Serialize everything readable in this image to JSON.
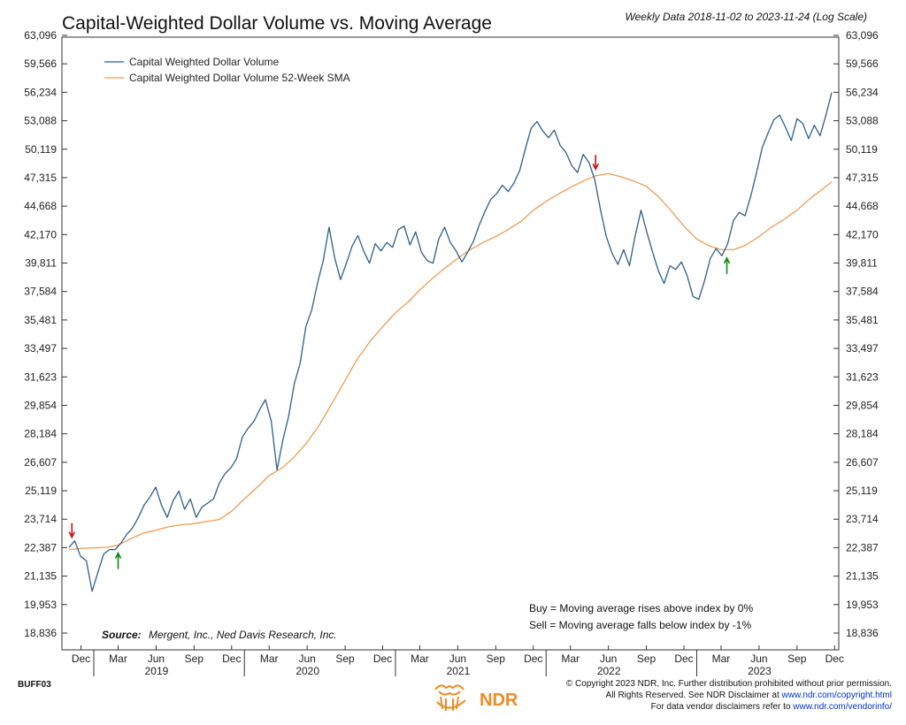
{
  "chart_data": {
    "type": "line",
    "title": "Capital-Weighted Dollar Volume vs. Moving Average",
    "subtitle": "Weekly Data 2018-11-02 to 2023-11-24 (Log Scale)",
    "y_scale": "log",
    "ylim": [
      18836,
      63096
    ],
    "y_ticks": [
      "63,096",
      "59,566",
      "56,234",
      "53,088",
      "50,119",
      "47,315",
      "44,668",
      "42,170",
      "39,811",
      "37,584",
      "35,481",
      "33,497",
      "31,623",
      "29,854",
      "28,184",
      "26,607",
      "25,119",
      "23,714",
      "22,387",
      "21,135",
      "19,953",
      "18,836"
    ],
    "y_tick_values": [
      63096,
      59566,
      56234,
      53088,
      50119,
      47315,
      44668,
      42170,
      39811,
      37584,
      35481,
      33497,
      31623,
      29854,
      28184,
      26607,
      25119,
      23714,
      22387,
      21135,
      19953,
      18836
    ],
    "x_range": [
      "2018-11-02",
      "2023-11-24"
    ],
    "month_ticks": [
      {
        "label": "Dec",
        "date": "2018-12-01"
      },
      {
        "label": "Mar",
        "date": "2019-03-01"
      },
      {
        "label": "Jun",
        "date": "2019-06-01"
      },
      {
        "label": "Sep",
        "date": "2019-09-01"
      },
      {
        "label": "Dec",
        "date": "2019-12-01"
      },
      {
        "label": "Mar",
        "date": "2020-03-01"
      },
      {
        "label": "Jun",
        "date": "2020-06-01"
      },
      {
        "label": "Sep",
        "date": "2020-09-01"
      },
      {
        "label": "Dec",
        "date": "2020-12-01"
      },
      {
        "label": "Mar",
        "date": "2021-03-01"
      },
      {
        "label": "Jun",
        "date": "2021-06-01"
      },
      {
        "label": "Sep",
        "date": "2021-09-01"
      },
      {
        "label": "Dec",
        "date": "2021-12-01"
      },
      {
        "label": "Mar",
        "date": "2022-03-01"
      },
      {
        "label": "Jun",
        "date": "2022-06-01"
      },
      {
        "label": "Sep",
        "date": "2022-09-01"
      },
      {
        "label": "Dec",
        "date": "2022-12-01"
      },
      {
        "label": "Mar",
        "date": "2023-03-01"
      },
      {
        "label": "Jun",
        "date": "2023-06-01"
      },
      {
        "label": "Sep",
        "date": "2023-09-01"
      },
      {
        "label": "Dec",
        "date": "2023-12-01"
      }
    ],
    "year_labels": [
      {
        "label": "2019",
        "date": "2019-06-15"
      },
      {
        "label": "2020",
        "date": "2020-06-15"
      },
      {
        "label": "2021",
        "date": "2021-06-15"
      },
      {
        "label": "2022",
        "date": "2022-06-15"
      },
      {
        "label": "2023",
        "date": "2023-06-15"
      }
    ],
    "series": [
      {
        "name": "Capital Weighted Dollar Volume",
        "color": "#2e5f8a",
        "points": [
          [
            "2018-11-02",
            22400
          ],
          [
            "2018-11-16",
            22700
          ],
          [
            "2018-11-30",
            22000
          ],
          [
            "2018-12-14",
            21800
          ],
          [
            "2018-12-28",
            20500
          ],
          [
            "2019-01-11",
            21300
          ],
          [
            "2019-01-25",
            22100
          ],
          [
            "2019-02-08",
            22300
          ],
          [
            "2019-02-22",
            22300
          ],
          [
            "2019-03-08",
            22600
          ],
          [
            "2019-03-22",
            23000
          ],
          [
            "2019-04-05",
            23300
          ],
          [
            "2019-04-19",
            23800
          ],
          [
            "2019-05-03",
            24400
          ],
          [
            "2019-05-17",
            24800
          ],
          [
            "2019-05-31",
            25300
          ],
          [
            "2019-06-14",
            24400
          ],
          [
            "2019-06-28",
            23800
          ],
          [
            "2019-07-12",
            24600
          ],
          [
            "2019-07-26",
            25100
          ],
          [
            "2019-08-09",
            24200
          ],
          [
            "2019-08-23",
            24700
          ],
          [
            "2019-09-06",
            23800
          ],
          [
            "2019-09-20",
            24300
          ],
          [
            "2019-10-04",
            24500
          ],
          [
            "2019-10-18",
            24700
          ],
          [
            "2019-11-01",
            25500
          ],
          [
            "2019-11-15",
            26000
          ],
          [
            "2019-11-29",
            26300
          ],
          [
            "2019-12-13",
            26800
          ],
          [
            "2019-12-27",
            28000
          ],
          [
            "2020-01-10",
            28500
          ],
          [
            "2020-01-24",
            28900
          ],
          [
            "2020-02-07",
            29600
          ],
          [
            "2020-02-21",
            30200
          ],
          [
            "2020-03-06",
            28900
          ],
          [
            "2020-03-20",
            26200
          ],
          [
            "2020-04-03",
            27800
          ],
          [
            "2020-04-17",
            29200
          ],
          [
            "2020-05-01",
            31200
          ],
          [
            "2020-05-15",
            32500
          ],
          [
            "2020-05-29",
            35000
          ],
          [
            "2020-06-12",
            36200
          ],
          [
            "2020-06-26",
            38200
          ],
          [
            "2020-07-10",
            40000
          ],
          [
            "2020-07-24",
            42800
          ],
          [
            "2020-08-07",
            40200
          ],
          [
            "2020-08-21",
            38500
          ],
          [
            "2020-09-04",
            39800
          ],
          [
            "2020-09-18",
            41200
          ],
          [
            "2020-10-02",
            42100
          ],
          [
            "2020-10-16",
            40800
          ],
          [
            "2020-10-30",
            39800
          ],
          [
            "2020-11-13",
            41400
          ],
          [
            "2020-11-27",
            40800
          ],
          [
            "2020-12-11",
            41500
          ],
          [
            "2020-12-25",
            41100
          ],
          [
            "2021-01-08",
            42600
          ],
          [
            "2021-01-22",
            42900
          ],
          [
            "2021-02-05",
            41300
          ],
          [
            "2021-02-19",
            42400
          ],
          [
            "2021-03-05",
            40700
          ],
          [
            "2021-03-19",
            40000
          ],
          [
            "2021-04-02",
            39800
          ],
          [
            "2021-04-16",
            41800
          ],
          [
            "2021-04-30",
            42800
          ],
          [
            "2021-05-14",
            41500
          ],
          [
            "2021-05-28",
            40800
          ],
          [
            "2021-06-11",
            39900
          ],
          [
            "2021-06-25",
            40700
          ],
          [
            "2021-07-09",
            41600
          ],
          [
            "2021-07-23",
            43000
          ],
          [
            "2021-08-06",
            44200
          ],
          [
            "2021-08-20",
            45300
          ],
          [
            "2021-09-03",
            45800
          ],
          [
            "2021-09-17",
            46600
          ],
          [
            "2021-10-01",
            46000
          ],
          [
            "2021-10-15",
            46800
          ],
          [
            "2021-10-29",
            48000
          ],
          [
            "2021-11-12",
            50200
          ],
          [
            "2021-11-26",
            52300
          ],
          [
            "2021-12-10",
            53000
          ],
          [
            "2021-12-24",
            52000
          ],
          [
            "2022-01-07",
            51300
          ],
          [
            "2022-01-21",
            52100
          ],
          [
            "2022-02-04",
            50500
          ],
          [
            "2022-02-18",
            49800
          ],
          [
            "2022-03-04",
            48500
          ],
          [
            "2022-03-18",
            47800
          ],
          [
            "2022-04-01",
            49600
          ],
          [
            "2022-04-15",
            48800
          ],
          [
            "2022-04-29",
            47100
          ],
          [
            "2022-05-13",
            44300
          ],
          [
            "2022-05-27",
            42000
          ],
          [
            "2022-06-10",
            40600
          ],
          [
            "2022-06-24",
            39700
          ],
          [
            "2022-07-08",
            40900
          ],
          [
            "2022-07-22",
            39600
          ],
          [
            "2022-08-05",
            42100
          ],
          [
            "2022-08-19",
            44300
          ],
          [
            "2022-09-02",
            42400
          ],
          [
            "2022-09-16",
            40700
          ],
          [
            "2022-09-30",
            39200
          ],
          [
            "2022-10-14",
            38200
          ],
          [
            "2022-10-28",
            39600
          ],
          [
            "2022-11-11",
            39300
          ],
          [
            "2022-11-25",
            39900
          ],
          [
            "2022-12-09",
            38800
          ],
          [
            "2022-12-23",
            37200
          ],
          [
            "2023-01-06",
            37000
          ],
          [
            "2023-01-20",
            38400
          ],
          [
            "2023-02-03",
            40200
          ],
          [
            "2023-02-17",
            41000
          ],
          [
            "2023-03-03",
            40400
          ],
          [
            "2023-03-17",
            41400
          ],
          [
            "2023-03-31",
            43400
          ],
          [
            "2023-04-14",
            44100
          ],
          [
            "2023-04-28",
            43800
          ],
          [
            "2023-05-12",
            45600
          ],
          [
            "2023-05-26",
            47800
          ],
          [
            "2023-06-09",
            50300
          ],
          [
            "2023-06-23",
            51800
          ],
          [
            "2023-07-07",
            53200
          ],
          [
            "2023-07-21",
            53700
          ],
          [
            "2023-08-04",
            52400
          ],
          [
            "2023-08-18",
            51000
          ],
          [
            "2023-09-01",
            53300
          ],
          [
            "2023-09-15",
            52800
          ],
          [
            "2023-09-29",
            51200
          ],
          [
            "2023-10-13",
            52600
          ],
          [
            "2023-10-27",
            51500
          ],
          [
            "2023-11-10",
            53700
          ],
          [
            "2023-11-24",
            56200
          ]
        ]
      },
      {
        "name": "Capital Weighted Dollar Volume 52-Week SMA",
        "color": "#f29a52",
        "points": [
          [
            "2018-11-02",
            22300
          ],
          [
            "2018-12-01",
            22350
          ],
          [
            "2019-01-01",
            22380
          ],
          [
            "2019-02-01",
            22400
          ],
          [
            "2019-03-01",
            22500
          ],
          [
            "2019-04-01",
            22800
          ],
          [
            "2019-05-01",
            23050
          ],
          [
            "2019-06-01",
            23200
          ],
          [
            "2019-07-01",
            23350
          ],
          [
            "2019-08-01",
            23450
          ],
          [
            "2019-09-01",
            23500
          ],
          [
            "2019-10-01",
            23600
          ],
          [
            "2019-11-01",
            23700
          ],
          [
            "2019-12-01",
            24100
          ],
          [
            "2020-01-01",
            24700
          ],
          [
            "2020-02-01",
            25300
          ],
          [
            "2020-03-01",
            25900
          ],
          [
            "2020-04-01",
            26300
          ],
          [
            "2020-05-01",
            26900
          ],
          [
            "2020-06-01",
            27700
          ],
          [
            "2020-07-01",
            28700
          ],
          [
            "2020-08-01",
            30000
          ],
          [
            "2020-09-01",
            31400
          ],
          [
            "2020-10-01",
            32800
          ],
          [
            "2020-11-01",
            34000
          ],
          [
            "2020-12-01",
            35000
          ],
          [
            "2021-01-01",
            36000
          ],
          [
            "2021-02-01",
            36800
          ],
          [
            "2021-03-01",
            37700
          ],
          [
            "2021-04-01",
            38600
          ],
          [
            "2021-05-01",
            39400
          ],
          [
            "2021-06-01",
            40200
          ],
          [
            "2021-07-01",
            40900
          ],
          [
            "2021-08-01",
            41500
          ],
          [
            "2021-09-01",
            42000
          ],
          [
            "2021-10-01",
            42600
          ],
          [
            "2021-11-01",
            43300
          ],
          [
            "2021-12-01",
            44300
          ],
          [
            "2022-01-01",
            45100
          ],
          [
            "2022-02-01",
            45800
          ],
          [
            "2022-03-01",
            46400
          ],
          [
            "2022-04-01",
            47000
          ],
          [
            "2022-05-01",
            47500
          ],
          [
            "2022-06-01",
            47700
          ],
          [
            "2022-07-01",
            47400
          ],
          [
            "2022-08-01",
            47000
          ],
          [
            "2022-09-01",
            46500
          ],
          [
            "2022-10-01",
            45500
          ],
          [
            "2022-11-01",
            44200
          ],
          [
            "2022-12-01",
            42900
          ],
          [
            "2023-01-01",
            41800
          ],
          [
            "2023-02-01",
            41200
          ],
          [
            "2023-03-01",
            40900
          ],
          [
            "2023-04-01",
            40900
          ],
          [
            "2023-05-01",
            41300
          ],
          [
            "2023-06-01",
            42000
          ],
          [
            "2023-07-01",
            42800
          ],
          [
            "2023-08-01",
            43500
          ],
          [
            "2023-09-01",
            44300
          ],
          [
            "2023-10-01",
            45300
          ],
          [
            "2023-11-24",
            46900
          ]
        ]
      }
    ],
    "signals": [
      {
        "type": "sell",
        "date": "2018-11-09",
        "value": 22700,
        "color": "#cc1111"
      },
      {
        "type": "buy",
        "date": "2019-03-01",
        "value": 22300,
        "color": "#118811"
      },
      {
        "type": "sell",
        "date": "2022-05-01",
        "value": 47800,
        "color": "#cc1111"
      },
      {
        "type": "buy",
        "date": "2023-03-15",
        "value": 40500,
        "color": "#118811"
      }
    ],
    "legend_position": "top-left",
    "grid": false
  },
  "annotations": {
    "source_label": "Source:",
    "source_text": "Mergent, Inc., Ned Davis Research, Inc.",
    "buy_rule": "Buy = Moving average rises above index by 0%",
    "sell_rule": "Sell = Moving average falls below index by -1%"
  },
  "footer": {
    "chart_id": "BUFF03",
    "copyright_line": "© Copyright 2023 NDR, Inc. Further distribution prohibited without prior permission.",
    "rights_prefix": "All Rights Reserved. See NDR Disclaimer at ",
    "rights_link": "www.ndr.com/copyright.html",
    "vendor_prefix": "For data vendor disclaimers refer to ",
    "vendor_link": "www.ndr.com/vendorinfo/",
    "logo_text": "NDR",
    "logo_color": "#f08a24"
  }
}
